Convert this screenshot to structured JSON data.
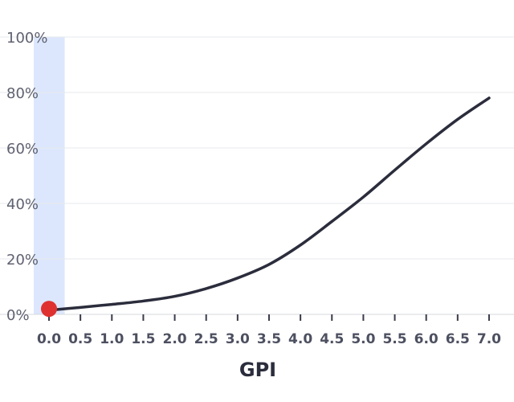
{
  "chart_data": {
    "type": "line",
    "title": "",
    "xlabel": "GPI",
    "ylabel": "",
    "xlim": [
      0,
      7
    ],
    "ylim": [
      0,
      100
    ],
    "x_ticks": [
      "0.0",
      "0.5",
      "1.0",
      "1.5",
      "2.0",
      "2.5",
      "3.0",
      "3.5",
      "4.0",
      "4.5",
      "5.0",
      "5.5",
      "6.0",
      "6.5",
      "7.0"
    ],
    "y_ticks": [
      "0%",
      "20%",
      "40%",
      "60%",
      "80%",
      "100%"
    ],
    "grid": true,
    "highlight_band": {
      "from": -0.25,
      "to": 0.25,
      "color": "#dce7fd"
    },
    "marker_point": {
      "x": 0.0,
      "y": 2,
      "color": "#e03131"
    },
    "line_color": "#2b2d3c",
    "series": [
      {
        "x": [
          0.0,
          0.5,
          1.0,
          1.5,
          2.0,
          2.5,
          3.0,
          3.5,
          4.0,
          4.5,
          5.0,
          5.5,
          6.0,
          6.5,
          7.0
        ],
        "y": [
          1.5,
          2.5,
          3.6,
          4.8,
          6.5,
          9.3,
          13.1,
          18.0,
          25.0,
          33.5,
          42.3,
          52.0,
          61.5,
          70.3,
          78.0
        ]
      }
    ]
  }
}
